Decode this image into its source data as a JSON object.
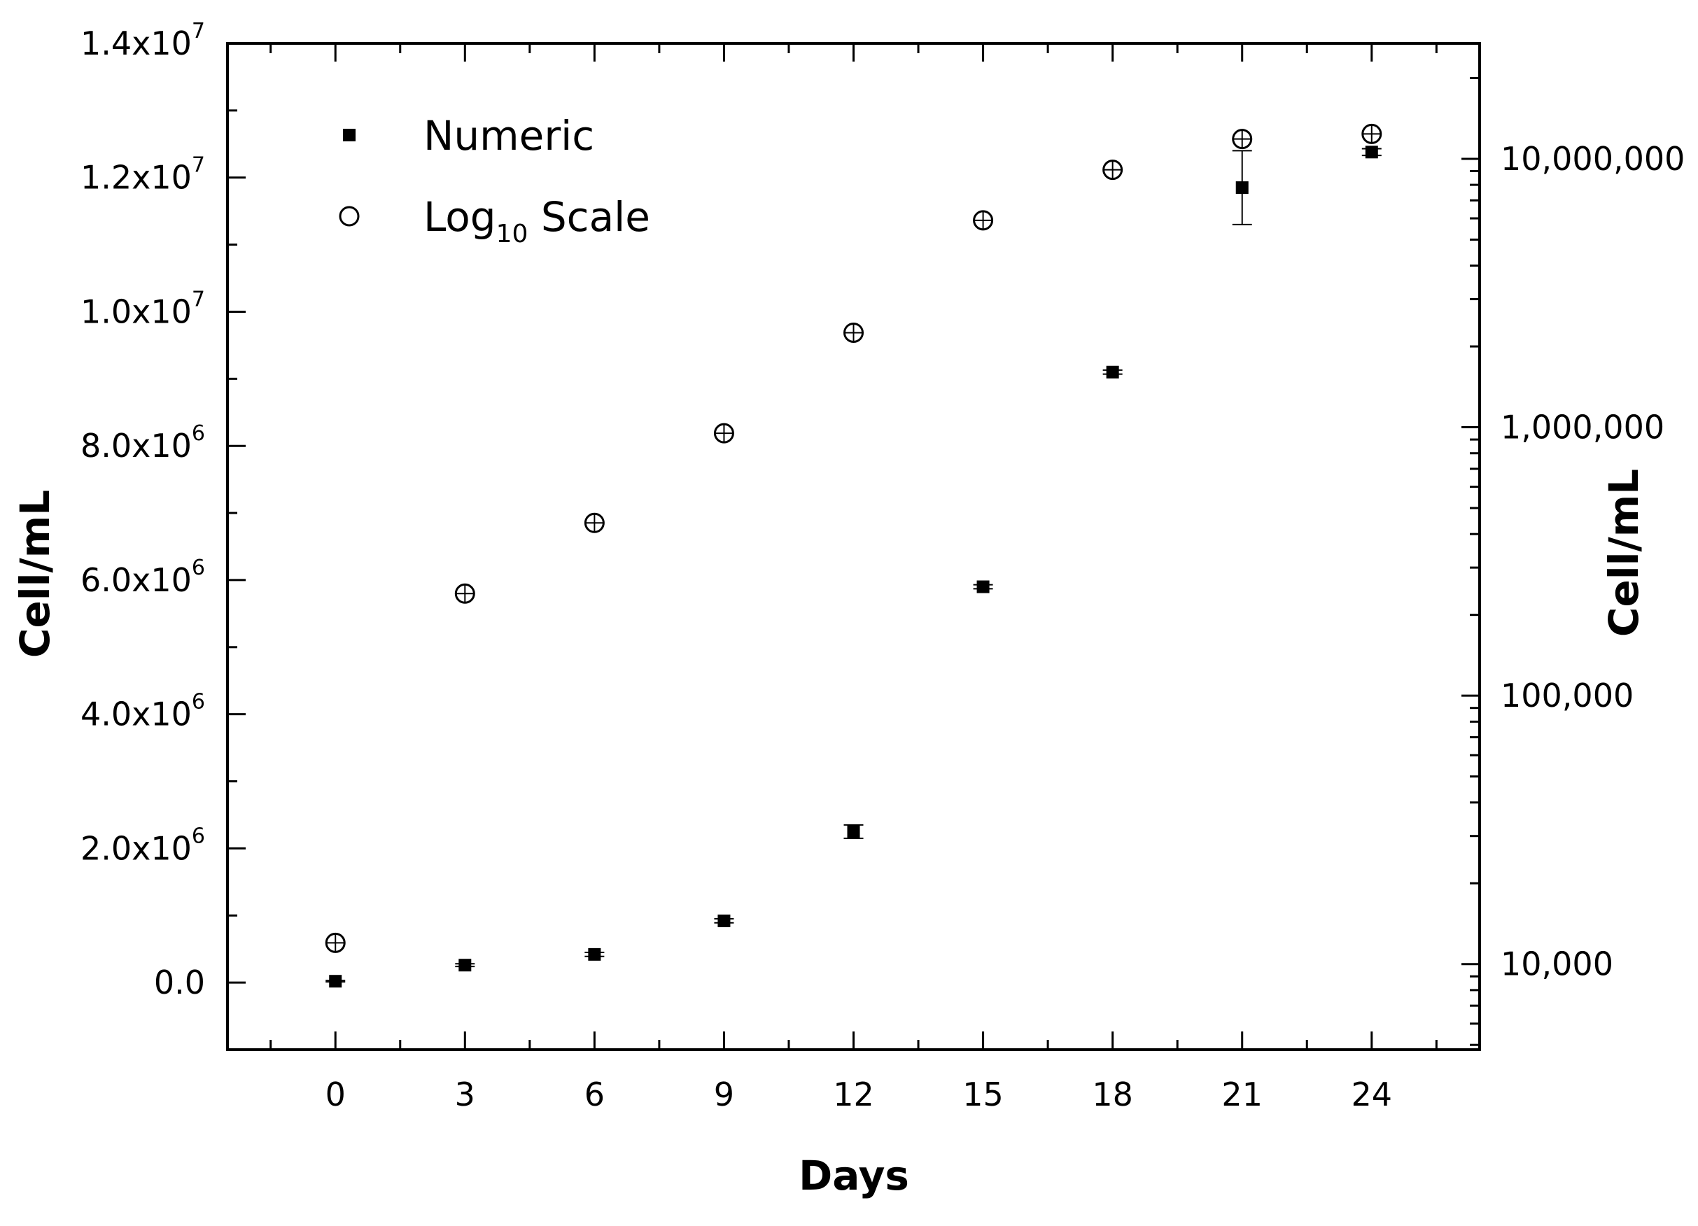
{
  "chart_data": {
    "type": "scatter",
    "title": "",
    "xlabel": "Days",
    "ylabel_left": "Cell/mL",
    "ylabel_right": "Cell/mL",
    "x_ticks": [
      "0",
      "3",
      "6",
      "9",
      "12",
      "15",
      "18",
      "21",
      "24"
    ],
    "x_range": [
      -2.5,
      26.5
    ],
    "y_left_range": [
      -1000000,
      14000000
    ],
    "y_left_ticks": [
      {
        "mant": "0.0",
        "exp": ""
      },
      {
        "mant": "2.0x10",
        "exp": "6"
      },
      {
        "mant": "4.0x10",
        "exp": "6"
      },
      {
        "mant": "6.0x10",
        "exp": "6"
      },
      {
        "mant": "8.0x10",
        "exp": "6"
      },
      {
        "mant": "1.0x10",
        "exp": "7"
      },
      {
        "mant": "1.2x10",
        "exp": "7"
      },
      {
        "mant": "1.4x10",
        "exp": "7"
      }
    ],
    "y_left_tick_values": [
      0,
      2000000,
      4000000,
      6000000,
      8000000,
      10000000,
      12000000,
      14000000
    ],
    "y_right_scale": "log10",
    "y_right_ticks": [
      "10,000",
      "100,000",
      "1,000,000",
      "10,000,000"
    ],
    "y_right_tick_values": [
      10000,
      100000,
      1000000,
      10000000
    ],
    "legend": {
      "position": "top-left",
      "entries": [
        {
          "label": "Numeric",
          "marker": "filled-square"
        },
        {
          "label_main": "Log",
          "label_sub": "10",
          "label_rest": " Scale",
          "marker": "open-circle"
        }
      ]
    },
    "series": [
      {
        "name": "Numeric",
        "axis": "left",
        "marker": "filled-square",
        "x": [
          0,
          3,
          6,
          9,
          12,
          15,
          18,
          21,
          24
        ],
        "y": [
          20000,
          260000,
          420000,
          920000,
          2250000,
          5900000,
          9100000,
          11850000,
          12380000
        ],
        "err": [
          10000,
          20000,
          30000,
          30000,
          100000,
          30000,
          30000,
          550000,
          50000
        ]
      },
      {
        "name": "Log10 Scale",
        "axis": "right",
        "marker": "open-circle",
        "x": [
          0,
          3,
          6,
          9,
          12,
          15,
          18,
          21,
          24
        ],
        "y": [
          12000,
          240000,
          440000,
          950000,
          2250000,
          5900000,
          9100000,
          11850000,
          12380000
        ]
      }
    ]
  }
}
